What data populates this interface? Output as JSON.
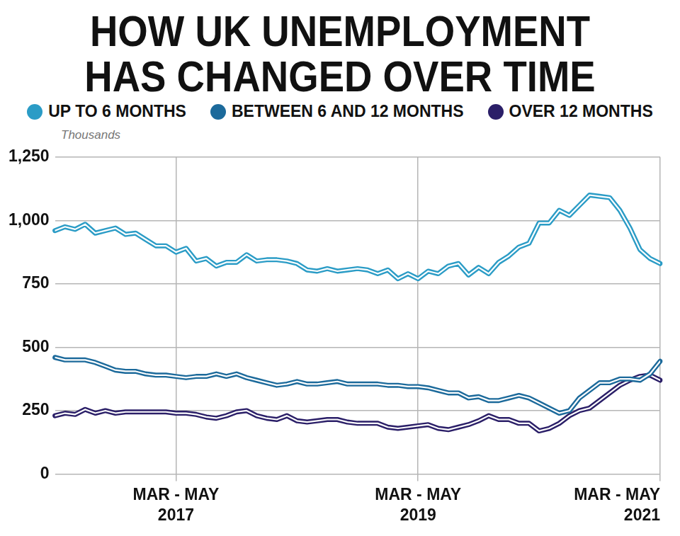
{
  "chart_data": {
    "type": "line",
    "title": [
      "HOW UK UNEMPLOYMENT",
      "HAS CHANGED OVER TIME"
    ],
    "y_label": "Thousands",
    "categories": [
      null,
      null,
      null,
      null,
      null,
      null,
      null,
      null,
      null,
      null,
      null,
      null,
      "MAR - MAY 2017",
      null,
      null,
      null,
      null,
      null,
      null,
      null,
      null,
      null,
      null,
      null,
      null,
      null,
      null,
      null,
      null,
      null,
      null,
      null,
      null,
      null,
      null,
      null,
      "MAR - MAY 2019",
      null,
      null,
      null,
      null,
      null,
      null,
      null,
      null,
      null,
      null,
      null,
      null,
      null,
      null,
      null,
      null,
      null,
      null,
      null,
      null,
      null,
      null,
      null,
      "MAR - MAY 2021"
    ],
    "series": [
      {
        "name": "UP TO 6 MONTHS",
        "color": "#2b9cc6",
        "values": [
          960,
          975,
          965,
          985,
          950,
          960,
          970,
          945,
          950,
          925,
          900,
          900,
          875,
          890,
          840,
          850,
          820,
          835,
          835,
          865,
          840,
          845,
          845,
          840,
          830,
          805,
          800,
          810,
          800,
          805,
          810,
          805,
          790,
          805,
          770,
          790,
          770,
          800,
          790,
          820,
          830,
          785,
          815,
          790,
          835,
          860,
          895,
          910,
          990,
          990,
          1040,
          1020,
          1060,
          1100,
          1095,
          1090,
          1040,
          970,
          885,
          850,
          830
        ]
      },
      {
        "name": "BETWEEN 6 AND 12 MONTHS",
        "color": "#1c6a9b",
        "values": [
          460,
          450,
          450,
          450,
          440,
          425,
          410,
          405,
          405,
          395,
          390,
          390,
          385,
          380,
          385,
          385,
          395,
          385,
          395,
          380,
          370,
          360,
          350,
          355,
          365,
          355,
          355,
          360,
          365,
          355,
          355,
          355,
          355,
          350,
          350,
          345,
          345,
          340,
          330,
          320,
          320,
          300,
          305,
          290,
          290,
          300,
          310,
          300,
          280,
          260,
          240,
          250,
          300,
          330,
          360,
          360,
          375,
          375,
          370,
          395,
          445
        ]
      },
      {
        "name": "OVER 12 MONTHS",
        "color": "#2b1f68",
        "values": [
          230,
          240,
          235,
          255,
          240,
          250,
          240,
          245,
          245,
          245,
          245,
          245,
          240,
          240,
          235,
          225,
          220,
          230,
          245,
          250,
          230,
          220,
          215,
          230,
          210,
          205,
          210,
          215,
          215,
          205,
          200,
          200,
          200,
          185,
          180,
          185,
          190,
          195,
          180,
          175,
          185,
          195,
          210,
          230,
          215,
          215,
          200,
          200,
          170,
          180,
          200,
          230,
          250,
          260,
          290,
          320,
          350,
          370,
          385,
          390,
          370
        ]
      }
    ],
    "ylim": [
      0,
      1250
    ],
    "yticks": [
      0,
      250,
      500,
      750,
      {
        "value": 1000,
        "label": "1,000"
      },
      {
        "value": 1250,
        "label": "1,250"
      }
    ],
    "grid": true,
    "legend": "top",
    "marker": "none",
    "line_style": "double"
  }
}
